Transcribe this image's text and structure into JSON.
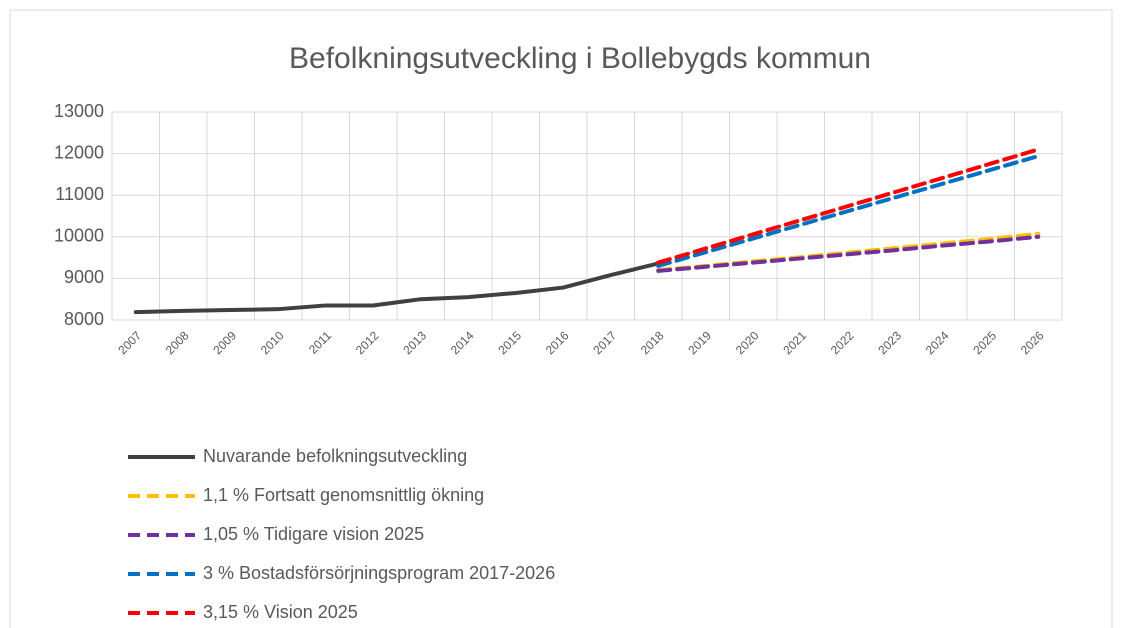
{
  "chart_data": {
    "type": "line",
    "title": "Befolkningsutveckling i Bollebygds kommun",
    "categories": [
      "2007",
      "2008",
      "2009",
      "2010",
      "2011",
      "2012",
      "2013",
      "2014",
      "2015",
      "2016",
      "2017",
      "2018",
      "2019",
      "2020",
      "2021",
      "2022",
      "2023",
      "2024",
      "2025",
      "2026"
    ],
    "series": [
      {
        "name": "Nuvarande befolkningsutveckling",
        "color": "#404040",
        "dashed": false,
        "values": [
          8190,
          8220,
          8240,
          8260,
          8350,
          8350,
          8500,
          8550,
          8650,
          8780,
          9080,
          9360,
          null,
          null,
          null,
          null,
          null,
          null,
          null,
          null
        ]
      },
      {
        "name": "1,1 % Fortsatt genomsnittlig ökning",
        "color": "#ffc000",
        "dashed": true,
        "values": [
          null,
          null,
          null,
          null,
          null,
          null,
          null,
          null,
          null,
          null,
          null,
          9200,
          9300,
          9410,
          9510,
          9620,
          9730,
          9840,
          9950,
          10070
        ]
      },
      {
        "name": "1,05 % Tidigare vision 2025",
        "color": "#7030a0",
        "dashed": true,
        "values": [
          null,
          null,
          null,
          null,
          null,
          null,
          null,
          null,
          null,
          null,
          null,
          9180,
          9280,
          9380,
          9480,
          9580,
          9680,
          9790,
          9890,
          10000
        ]
      },
      {
        "name": "3 % Bostadsförsörjningsprogram 2017-2026",
        "color": "#0070c0",
        "dashed": true,
        "values": [
          null,
          null,
          null,
          null,
          null,
          null,
          null,
          null,
          null,
          null,
          null,
          9300,
          9630,
          9960,
          10290,
          10620,
          10950,
          11280,
          11610,
          11940
        ]
      },
      {
        "name": "3,15 % Vision 2025",
        "color": "#ff0000",
        "dashed": true,
        "values": [
          null,
          null,
          null,
          null,
          null,
          null,
          null,
          null,
          null,
          null,
          null,
          9380,
          9720,
          10060,
          10400,
          10740,
          11080,
          11420,
          11760,
          12100
        ]
      }
    ],
    "ylim": [
      8000,
      13000
    ],
    "yticks": [
      8000,
      9000,
      10000,
      11000,
      12000,
      13000
    ],
    "grid": true
  }
}
